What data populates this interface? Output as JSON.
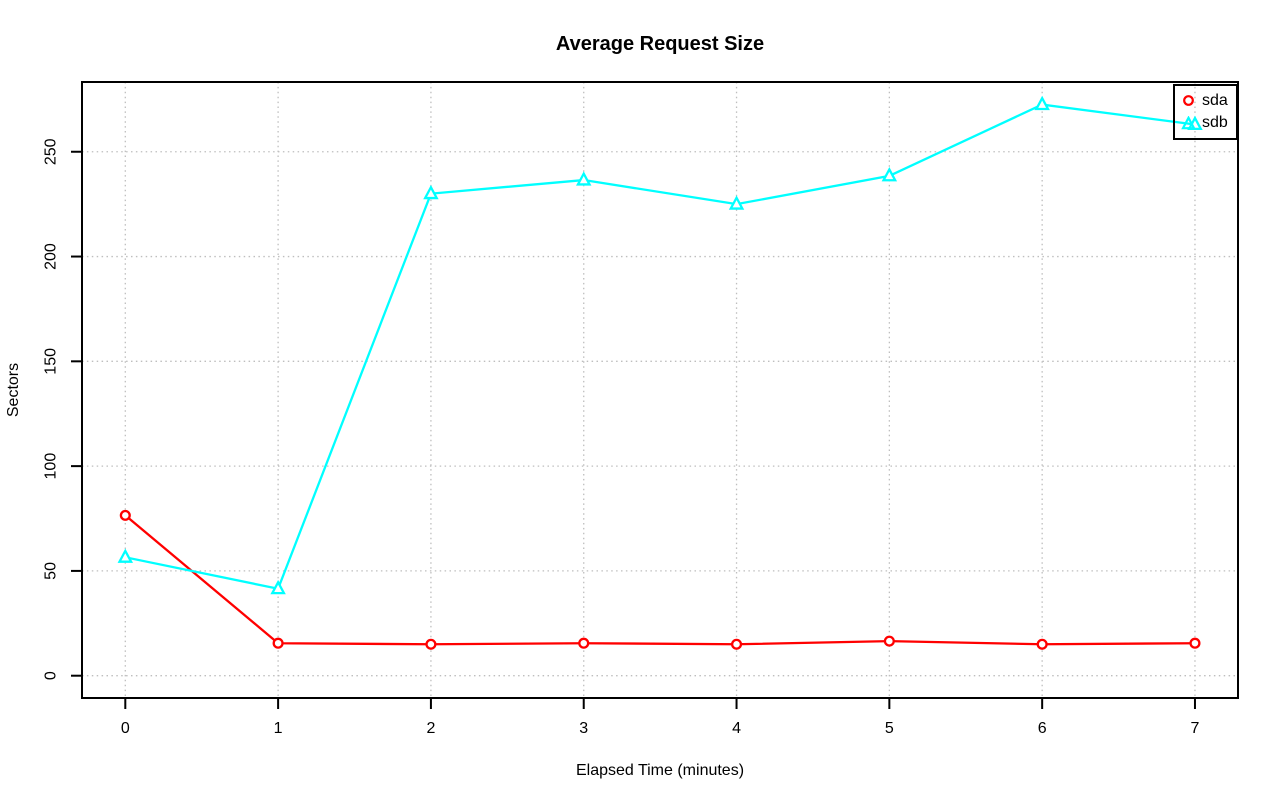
{
  "chart_data": {
    "type": "line",
    "title": "Average Request Size",
    "xlabel": "Elapsed Time (minutes)",
    "ylabel": "Sectors",
    "x": [
      0,
      1,
      2,
      3,
      4,
      5,
      6,
      7
    ],
    "xticks": [
      0,
      1,
      2,
      3,
      4,
      5,
      6,
      7
    ],
    "yticks": [
      0,
      50,
      100,
      150,
      200,
      250
    ],
    "xlim": [
      0,
      7
    ],
    "ylim": [
      0,
      283
    ],
    "grid": true,
    "grid_style": "dotted",
    "grid_color": "#BEBEBE",
    "axis_color": "#000000",
    "background_color": "#FFFFFF",
    "legend_position": "top-right",
    "series": [
      {
        "name": "sda",
        "color": "#FF0000",
        "marker": "circle",
        "values": [
          76.5,
          15.5,
          15,
          15.5,
          15,
          16.5,
          15,
          15.5
        ]
      },
      {
        "name": "sdb",
        "color": "#00FFFF",
        "marker": "triangle",
        "values": [
          56.5,
          41.5,
          230,
          236.5,
          225,
          238.5,
          272.5,
          263
        ]
      }
    ]
  }
}
